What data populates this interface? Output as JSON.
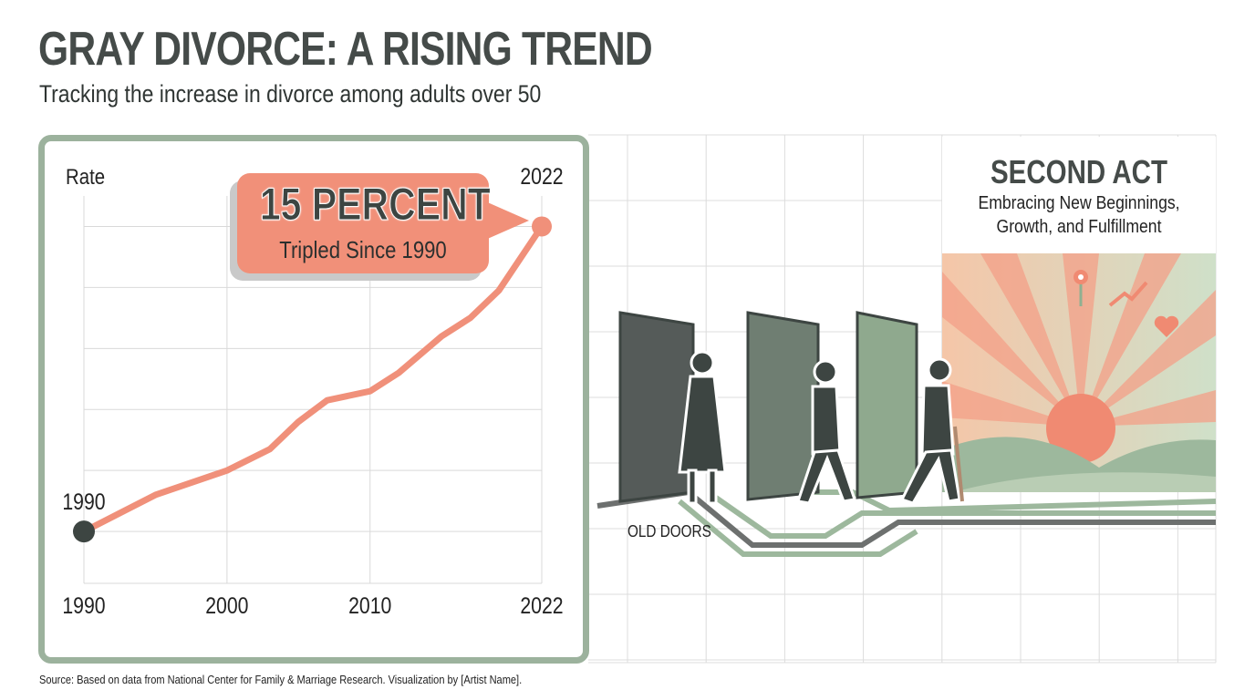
{
  "header": {
    "title": "GRAY DIVORCE: A RISING TREND",
    "subtitle": "Tracking the increase in divorce among adults over 50"
  },
  "callout": {
    "headline": "15 PERCENT",
    "subtext": "Tripled Since 1990"
  },
  "illustration": {
    "second_act_title": "SECOND ACT",
    "second_act_line1": "Embracing New Beginnings,",
    "second_act_line2": "Growth, and Fulfillment",
    "old_doors_label": "OLD DOORS",
    "icons": [
      "door-icon",
      "walking-person-icon",
      "sun-icon",
      "flower-icon",
      "trend-arrow-icon",
      "heart-icon"
    ]
  },
  "footer": {
    "source": "Source: Based on data from National Center for Family & Marriage Research. Visualization by [Artist Name]."
  },
  "colors": {
    "line": "#f0907a",
    "start_point": "#3d4542",
    "end_point": "#f0907a",
    "panel_border": "#9cb29d",
    "grid": "#d9d9d9"
  },
  "chart_data": {
    "type": "line",
    "title": "",
    "ylabel": "Rate",
    "xlabel": "",
    "x": [
      1990,
      1995,
      2000,
      2003,
      2005,
      2007,
      2010,
      2012,
      2015,
      2017,
      2019,
      2022
    ],
    "values": [
      5.0,
      6.2,
      7.0,
      7.7,
      8.6,
      9.3,
      9.6,
      10.2,
      11.4,
      12.0,
      12.9,
      15.0
    ],
    "xlim": [
      1990,
      2022
    ],
    "ylim": [
      3.3,
      16
    ],
    "x_ticks": [
      "1990",
      "2000",
      "2010",
      "2022"
    ],
    "x_tick_values": [
      1990,
      2000,
      2010,
      2022
    ],
    "point_labels": {
      "start": "1990",
      "end": "2022"
    },
    "grid": true,
    "y_gridlines": [
      5,
      7,
      9,
      11,
      13,
      15
    ]
  }
}
